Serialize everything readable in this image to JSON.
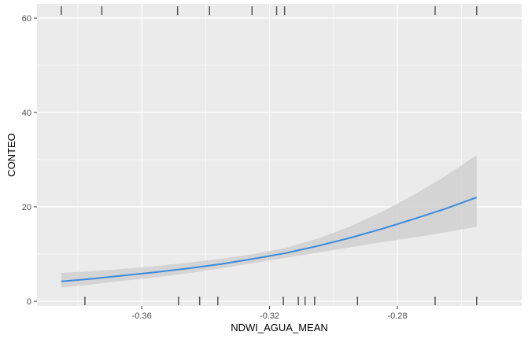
{
  "chart_data": {
    "type": "line",
    "title": "",
    "xlabel": "NDWI_AGUA_MEAN",
    "ylabel": "CONTEO",
    "xlim": [
      -0.3928,
      -0.2411
    ],
    "ylim": [
      -1.0,
      63.0
    ],
    "x_ticks": [
      -0.36,
      -0.32,
      -0.28
    ],
    "x_tick_labels": [
      "-0.36",
      "-0.32",
      "-0.28"
    ],
    "y_ticks": [
      0,
      20,
      40,
      60
    ],
    "y_tick_labels": [
      "0",
      "20",
      "40",
      "60"
    ],
    "grid": true,
    "legend": "none",
    "colors": {
      "panel": "#ebebeb",
      "grid": "#ffffff",
      "line": "#3a8be0",
      "band": "#d0d0d0",
      "rug": "#555555"
    },
    "series": [
      {
        "x": [
          -0.3852,
          -0.375,
          -0.365,
          -0.355,
          -0.345,
          -0.335,
          -0.325,
          -0.315,
          -0.305,
          -0.295,
          -0.285,
          -0.275,
          -0.265,
          -0.2552
        ],
        "y": [
          4.2,
          4.8,
          5.5,
          6.2,
          7.0,
          7.9,
          9.0,
          10.2,
          11.7,
          13.4,
          15.3,
          17.4,
          19.6,
          22.0
        ]
      }
    ],
    "confidence_band": {
      "x": [
        -0.3852,
        -0.375,
        -0.365,
        -0.355,
        -0.345,
        -0.335,
        -0.325,
        -0.315,
        -0.305,
        -0.295,
        -0.285,
        -0.275,
        -0.265,
        -0.2552
      ],
      "lower": [
        2.9,
        3.6,
        4.4,
        5.1,
        6.0,
        7.0,
        8.1,
        9.2,
        10.3,
        11.4,
        12.5,
        13.5,
        14.6,
        15.8
      ],
      "upper": [
        6.0,
        6.4,
        6.9,
        7.5,
        8.2,
        9.0,
        10.0,
        11.3,
        13.3,
        15.8,
        18.9,
        22.5,
        26.5,
        31.0
      ]
    },
    "rug_top_x": [
      -0.3852,
      -0.3725,
      -0.3488,
      -0.3388,
      -0.3255,
      -0.3178,
      -0.3153,
      -0.2682,
      -0.2552
    ],
    "rug_bottom_x": [
      -0.3778,
      -0.3485,
      -0.3419,
      -0.3362,
      -0.3157,
      -0.311,
      -0.3089,
      -0.3059,
      -0.2925,
      -0.2682,
      -0.2552
    ]
  }
}
